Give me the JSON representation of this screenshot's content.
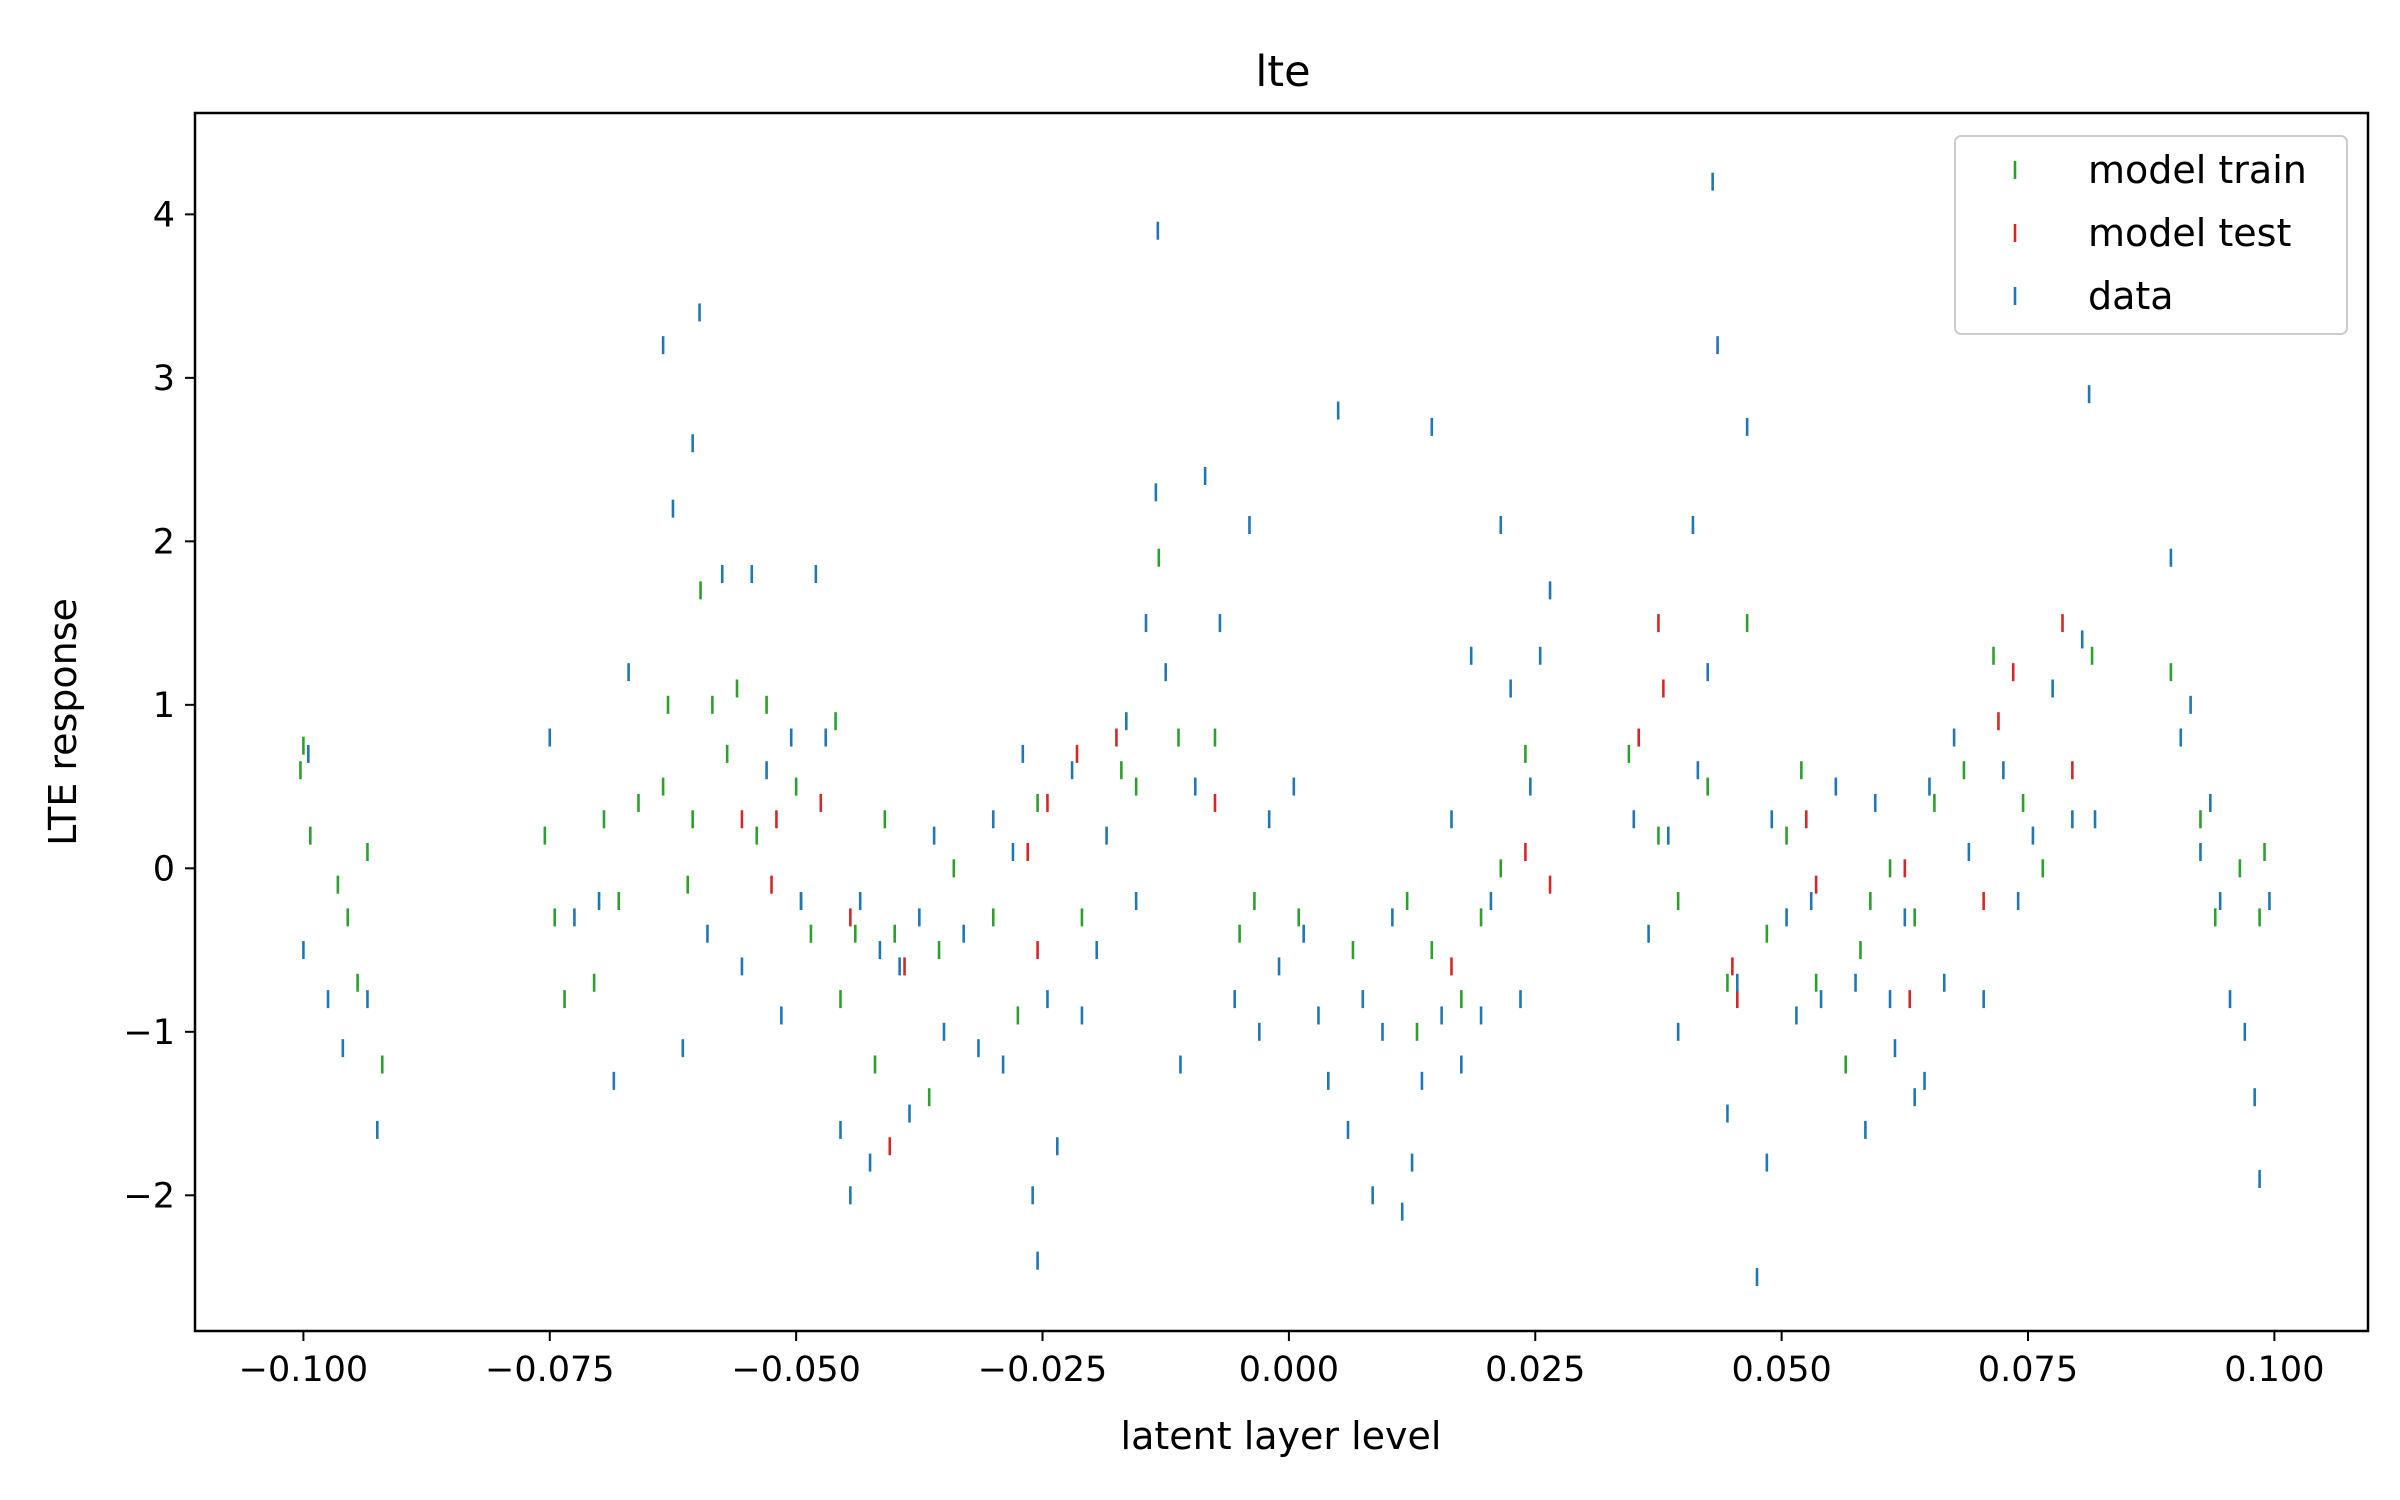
{
  "chart_data": {
    "type": "scatter",
    "title": "lte",
    "xlabel": "latent layer level",
    "ylabel": "LTE response",
    "xlim": [
      -0.111,
      0.1095
    ],
    "ylim": [
      -2.83,
      4.62
    ],
    "xticks": [
      -0.1,
      -0.075,
      -0.05,
      -0.025,
      0.0,
      0.025,
      0.05,
      0.075,
      0.1
    ],
    "xtick_labels": [
      "−0.100",
      "−0.075",
      "−0.050",
      "−0.025",
      "0.000",
      "0.025",
      "0.050",
      "0.075",
      "0.100"
    ],
    "yticks": [
      -2,
      -1,
      0,
      1,
      2,
      3,
      4
    ],
    "ytick_labels": [
      "−2",
      "−1",
      "0",
      "1",
      "2",
      "3",
      "4"
    ],
    "grid": false,
    "legend_position": "top-right",
    "marker": "vertical tick",
    "series": [
      {
        "name": "model train",
        "color": "#2ca02c",
        "points": [
          [
            -0.1003,
            0.6
          ],
          [
            -0.1,
            0.75
          ],
          [
            -0.0993,
            0.2
          ],
          [
            -0.0965,
            -0.1
          ],
          [
            -0.0955,
            -0.3
          ],
          [
            -0.0945,
            -0.7
          ],
          [
            -0.0935,
            0.1
          ],
          [
            -0.092,
            -1.2
          ],
          [
            -0.0755,
            0.2
          ],
          [
            -0.0745,
            -0.3
          ],
          [
            -0.0735,
            -0.8
          ],
          [
            -0.0705,
            -0.7
          ],
          [
            -0.0695,
            0.3
          ],
          [
            -0.068,
            -0.2
          ],
          [
            -0.066,
            0.4
          ],
          [
            -0.0635,
            0.5
          ],
          [
            -0.063,
            1.0
          ],
          [
            -0.061,
            -0.1
          ],
          [
            -0.0605,
            0.3
          ],
          [
            -0.0597,
            1.7
          ],
          [
            -0.0585,
            1.0
          ],
          [
            -0.057,
            0.7
          ],
          [
            -0.056,
            1.1
          ],
          [
            -0.054,
            0.2
          ],
          [
            -0.053,
            1.0
          ],
          [
            -0.05,
            0.5
          ],
          [
            -0.0495,
            -0.2
          ],
          [
            -0.0485,
            -0.4
          ],
          [
            -0.046,
            0.9
          ],
          [
            -0.0455,
            -0.8
          ],
          [
            -0.044,
            -0.4
          ],
          [
            -0.042,
            -1.2
          ],
          [
            -0.041,
            0.3
          ],
          [
            -0.04,
            -0.4
          ],
          [
            -0.0365,
            -1.4
          ],
          [
            -0.0355,
            -0.5
          ],
          [
            -0.034,
            0.0
          ],
          [
            -0.03,
            -0.3
          ],
          [
            -0.0275,
            -0.9
          ],
          [
            -0.0255,
            0.4
          ],
          [
            -0.021,
            -0.3
          ],
          [
            -0.017,
            0.6
          ],
          [
            -0.0155,
            0.5
          ],
          [
            -0.0132,
            1.9
          ],
          [
            -0.0112,
            0.8
          ],
          [
            -0.0075,
            0.8
          ],
          [
            -0.005,
            -0.4
          ],
          [
            -0.0035,
            -0.2
          ],
          [
            0.001,
            -0.3
          ],
          [
            0.0065,
            -0.5
          ],
          [
            0.012,
            -0.2
          ],
          [
            0.013,
            -1.0
          ],
          [
            0.0145,
            -0.5
          ],
          [
            0.0175,
            -0.8
          ],
          [
            0.0195,
            -0.3
          ],
          [
            0.0215,
            0.0
          ],
          [
            0.024,
            0.7
          ],
          [
            0.0345,
            0.7
          ],
          [
            0.0375,
            0.2
          ],
          [
            0.0395,
            -0.2
          ],
          [
            0.0425,
            0.5
          ],
          [
            0.0445,
            -0.7
          ],
          [
            0.0465,
            1.5
          ],
          [
            0.0485,
            -0.4
          ],
          [
            0.0505,
            0.2
          ],
          [
            0.052,
            0.6
          ],
          [
            0.0535,
            -0.7
          ],
          [
            0.0565,
            -1.2
          ],
          [
            0.058,
            -0.5
          ],
          [
            0.059,
            -0.2
          ],
          [
            0.061,
            0.0
          ],
          [
            0.0635,
            -0.3
          ],
          [
            0.0655,
            0.4
          ],
          [
            0.0685,
            0.6
          ],
          [
            0.0715,
            1.3
          ],
          [
            0.0745,
            0.4
          ],
          [
            0.0765,
            0.0
          ],
          [
            0.0815,
            1.3
          ],
          [
            0.0895,
            1.2
          ],
          [
            0.0925,
            0.3
          ],
          [
            0.094,
            -0.3
          ],
          [
            0.0965,
            0.0
          ],
          [
            0.0985,
            -0.3
          ],
          [
            0.099,
            0.1
          ]
        ]
      },
      {
        "name": "model test",
        "color": "#d62728",
        "points": [
          [
            -0.0555,
            0.3
          ],
          [
            -0.0525,
            -0.1
          ],
          [
            -0.052,
            0.3
          ],
          [
            -0.0475,
            0.4
          ],
          [
            -0.0445,
            -0.3
          ],
          [
            -0.0405,
            -1.7
          ],
          [
            -0.039,
            -0.6
          ],
          [
            -0.0245,
            0.4
          ],
          [
            -0.0265,
            0.1
          ],
          [
            -0.0255,
            -0.5
          ],
          [
            -0.0215,
            0.7
          ],
          [
            -0.0175,
            0.8
          ],
          [
            -0.0075,
            0.4
          ],
          [
            0.0165,
            -0.6
          ],
          [
            0.024,
            0.1
          ],
          [
            0.0265,
            -0.1
          ],
          [
            0.0355,
            0.8
          ],
          [
            0.0375,
            1.5
          ],
          [
            0.038,
            1.1
          ],
          [
            0.045,
            -0.6
          ],
          [
            0.0455,
            -0.8
          ],
          [
            0.0525,
            0.3
          ],
          [
            0.0535,
            -0.1
          ],
          [
            0.0625,
            0.0
          ],
          [
            0.063,
            -0.8
          ],
          [
            0.0705,
            -0.2
          ],
          [
            0.072,
            0.9
          ],
          [
            0.0735,
            1.2
          ],
          [
            0.0785,
            1.5
          ],
          [
            0.0795,
            0.6
          ]
        ]
      },
      {
        "name": "data",
        "color": "#1f77b4",
        "points": [
          [
            -0.1,
            -0.5
          ],
          [
            -0.0995,
            0.7
          ],
          [
            -0.0975,
            -0.8
          ],
          [
            -0.096,
            -1.1
          ],
          [
            -0.0925,
            -1.6
          ],
          [
            -0.0935,
            -0.8
          ],
          [
            -0.075,
            0.8
          ],
          [
            -0.0725,
            -0.3
          ],
          [
            -0.07,
            -0.2
          ],
          [
            -0.0685,
            -1.3
          ],
          [
            -0.067,
            1.2
          ],
          [
            -0.0635,
            3.2
          ],
          [
            -0.0625,
            2.2
          ],
          [
            -0.0615,
            -1.1
          ],
          [
            -0.0605,
            2.6
          ],
          [
            -0.0598,
            3.4
          ],
          [
            -0.059,
            -0.4
          ],
          [
            -0.0575,
            1.8
          ],
          [
            -0.0555,
            -0.6
          ],
          [
            -0.0545,
            1.8
          ],
          [
            -0.053,
            0.6
          ],
          [
            -0.0515,
            -0.9
          ],
          [
            -0.0505,
            0.8
          ],
          [
            -0.0495,
            -0.2
          ],
          [
            -0.048,
            1.8
          ],
          [
            -0.047,
            0.8
          ],
          [
            -0.0455,
            -1.6
          ],
          [
            -0.0445,
            -2.0
          ],
          [
            -0.0435,
            -0.2
          ],
          [
            -0.0425,
            -1.8
          ],
          [
            -0.0415,
            -0.5
          ],
          [
            -0.0395,
            -0.6
          ],
          [
            -0.0385,
            -1.5
          ],
          [
            -0.0375,
            -0.3
          ],
          [
            -0.036,
            0.2
          ],
          [
            -0.035,
            -1.0
          ],
          [
            -0.033,
            -0.4
          ],
          [
            -0.0315,
            -1.1
          ],
          [
            -0.03,
            0.3
          ],
          [
            -0.029,
            -1.2
          ],
          [
            -0.028,
            0.1
          ],
          [
            -0.027,
            0.7
          ],
          [
            -0.026,
            -2.0
          ],
          [
            -0.0255,
            -2.4
          ],
          [
            -0.0245,
            -0.8
          ],
          [
            -0.0235,
            -1.7
          ],
          [
            -0.022,
            0.6
          ],
          [
            -0.021,
            -0.9
          ],
          [
            -0.0195,
            -0.5
          ],
          [
            -0.0185,
            0.2
          ],
          [
            -0.0165,
            0.9
          ],
          [
            -0.0155,
            -0.2
          ],
          [
            -0.0145,
            1.5
          ],
          [
            -0.0135,
            2.3
          ],
          [
            -0.0133,
            3.9
          ],
          [
            -0.0125,
            1.2
          ],
          [
            -0.011,
            -1.2
          ],
          [
            -0.0095,
            0.5
          ],
          [
            -0.0085,
            2.4
          ],
          [
            -0.007,
            1.5
          ],
          [
            -0.0055,
            -0.8
          ],
          [
            -0.004,
            2.1
          ],
          [
            -0.003,
            -1.0
          ],
          [
            -0.002,
            0.3
          ],
          [
            -0.001,
            -0.6
          ],
          [
            0.0005,
            0.5
          ],
          [
            0.0015,
            -0.4
          ],
          [
            0.003,
            -0.9
          ],
          [
            0.004,
            -1.3
          ],
          [
            0.005,
            2.8
          ],
          [
            0.006,
            -1.6
          ],
          [
            0.0075,
            -0.8
          ],
          [
            0.0085,
            -2.0
          ],
          [
            0.0095,
            -1.0
          ],
          [
            0.0105,
            -0.3
          ],
          [
            0.0115,
            -2.1
          ],
          [
            0.0125,
            -1.8
          ],
          [
            0.0135,
            -1.3
          ],
          [
            0.0145,
            2.7
          ],
          [
            0.0155,
            -0.9
          ],
          [
            0.0165,
            0.3
          ],
          [
            0.0175,
            -1.2
          ],
          [
            0.0185,
            1.3
          ],
          [
            0.0195,
            -0.9
          ],
          [
            0.0205,
            -0.2
          ],
          [
            0.0215,
            2.1
          ],
          [
            0.0225,
            1.1
          ],
          [
            0.0235,
            -0.8
          ],
          [
            0.0245,
            0.5
          ],
          [
            0.0255,
            1.3
          ],
          [
            0.0265,
            1.7
          ],
          [
            0.035,
            0.3
          ],
          [
            0.0365,
            -0.4
          ],
          [
            0.0385,
            0.2
          ],
          [
            0.0395,
            -1.0
          ],
          [
            0.041,
            2.1
          ],
          [
            0.0415,
            0.6
          ],
          [
            0.0425,
            1.2
          ],
          [
            0.043,
            4.2
          ],
          [
            0.0435,
            3.2
          ],
          [
            0.0445,
            -1.5
          ],
          [
            0.0455,
            -0.7
          ],
          [
            0.0465,
            2.7
          ],
          [
            0.0475,
            -2.5
          ],
          [
            0.0485,
            -1.8
          ],
          [
            0.049,
            0.3
          ],
          [
            0.0505,
            -0.3
          ],
          [
            0.0515,
            -0.9
          ],
          [
            0.053,
            -0.2
          ],
          [
            0.054,
            -0.8
          ],
          [
            0.0555,
            0.5
          ],
          [
            0.0575,
            -0.7
          ],
          [
            0.0585,
            -1.6
          ],
          [
            0.0595,
            0.4
          ],
          [
            0.061,
            -0.8
          ],
          [
            0.0615,
            -1.1
          ],
          [
            0.0625,
            -0.3
          ],
          [
            0.0635,
            -1.4
          ],
          [
            0.0645,
            -1.3
          ],
          [
            0.065,
            0.5
          ],
          [
            0.0665,
            -0.7
          ],
          [
            0.0675,
            0.8
          ],
          [
            0.069,
            0.1
          ],
          [
            0.0705,
            -0.8
          ],
          [
            0.0725,
            0.6
          ],
          [
            0.074,
            -0.2
          ],
          [
            0.0755,
            0.2
          ],
          [
            0.0775,
            1.1
          ],
          [
            0.0795,
            0.3
          ],
          [
            0.0805,
            1.4
          ],
          [
            0.0812,
            2.9
          ],
          [
            0.0818,
            0.3
          ],
          [
            0.0895,
            1.9
          ],
          [
            0.0905,
            0.8
          ],
          [
            0.0915,
            1.0
          ],
          [
            0.0925,
            0.1
          ],
          [
            0.0935,
            0.4
          ],
          [
            0.0945,
            -0.2
          ],
          [
            0.0955,
            -0.8
          ],
          [
            0.097,
            -1.0
          ],
          [
            0.098,
            -1.4
          ],
          [
            0.0985,
            -1.9
          ],
          [
            0.0995,
            -0.2
          ]
        ]
      }
    ]
  }
}
